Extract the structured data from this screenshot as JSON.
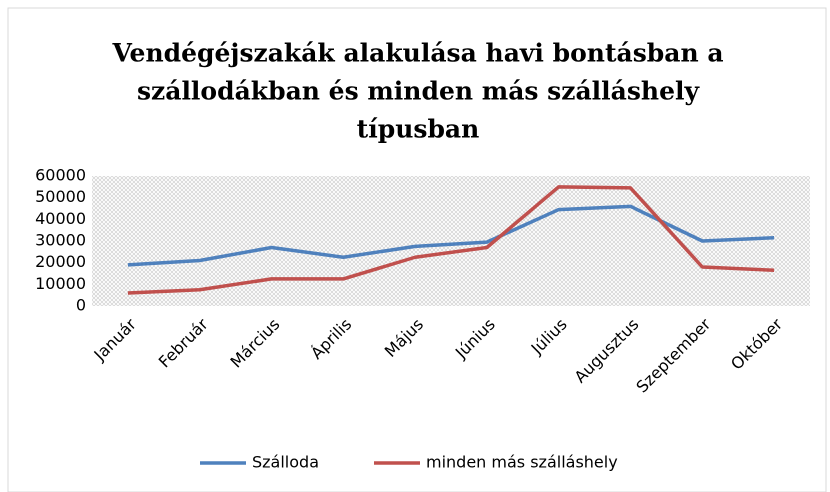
{
  "chart_data": {
    "type": "line",
    "title": [
      "Vendégéjszakák alakulása havi bontásban a",
      "szállodákban és minden más szálláshely",
      "típusban"
    ],
    "categories": [
      "Január",
      "Február",
      "Március",
      "Április",
      "Május",
      "Június",
      "Július",
      "Augusztus",
      "Szeptember",
      "Október"
    ],
    "series": [
      {
        "name": "Szálloda",
        "color": "#4f81bd",
        "values": [
          19000,
          21000,
          27000,
          22500,
          27500,
          29500,
          44500,
          46000,
          30000,
          31500
        ]
      },
      {
        "name": "minden más szálláshely",
        "color": "#c0504d",
        "values": [
          6000,
          7500,
          12500,
          12500,
          22500,
          27000,
          55000,
          54500,
          18000,
          16500
        ]
      }
    ],
    "ylim": [
      0,
      60000
    ],
    "yticks": [
      0,
      10000,
      20000,
      30000,
      40000,
      50000,
      60000
    ],
    "grid": false,
    "legend": "bottom"
  }
}
